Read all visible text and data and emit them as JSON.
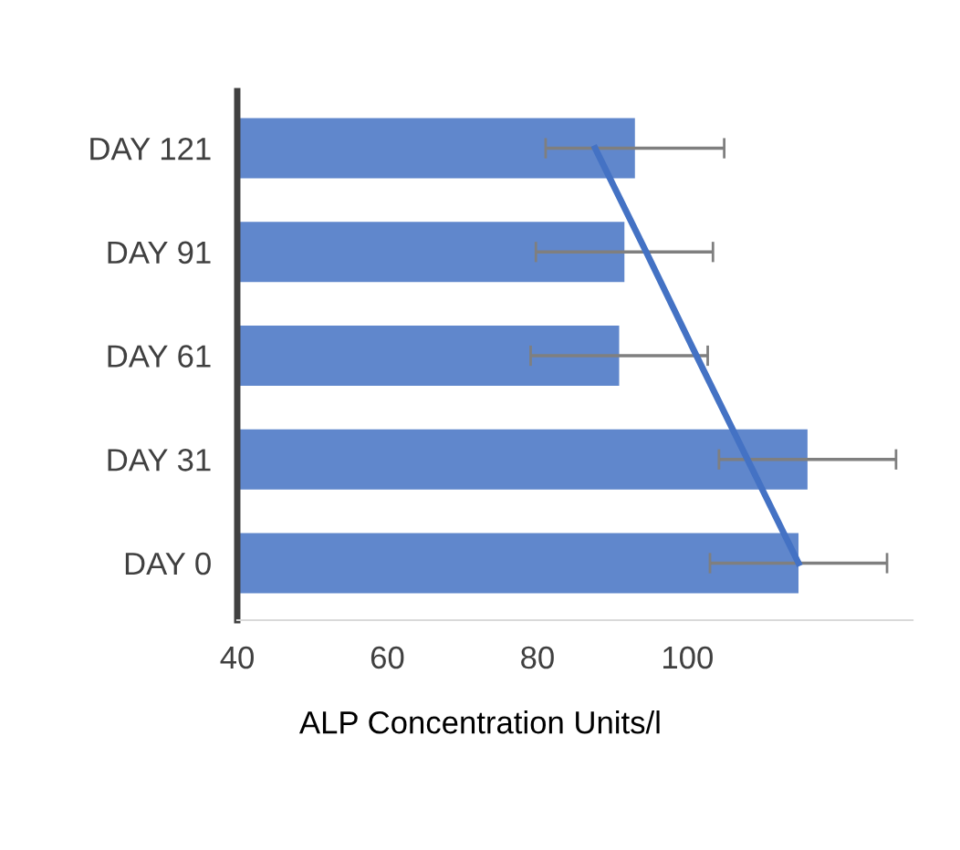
{
  "chart_data": {
    "type": "bar",
    "orientation": "horizontal",
    "xlabel": "ALP Concentration Units/l",
    "categories": [
      "DAY 121",
      "DAY 91",
      "DAY 61",
      "DAY 31",
      "DAY 0"
    ],
    "series": [
      {
        "color": "#6087cc",
        "values": [
          93.0,
          91.6,
          90.9,
          116.0,
          114.8
        ],
        "errors": [
          11.9,
          11.8,
          11.8,
          11.8,
          11.8
        ]
      },
      {
        "type": "line",
        "color": "#4472c4",
        "values": [
          87.7,
          94.5,
          101.2,
          108.0,
          114.8
        ]
      }
    ],
    "xlim": [
      40,
      130
    ],
    "xticks": [
      40,
      60,
      80,
      100
    ],
    "grid": false,
    "legend": false
  }
}
